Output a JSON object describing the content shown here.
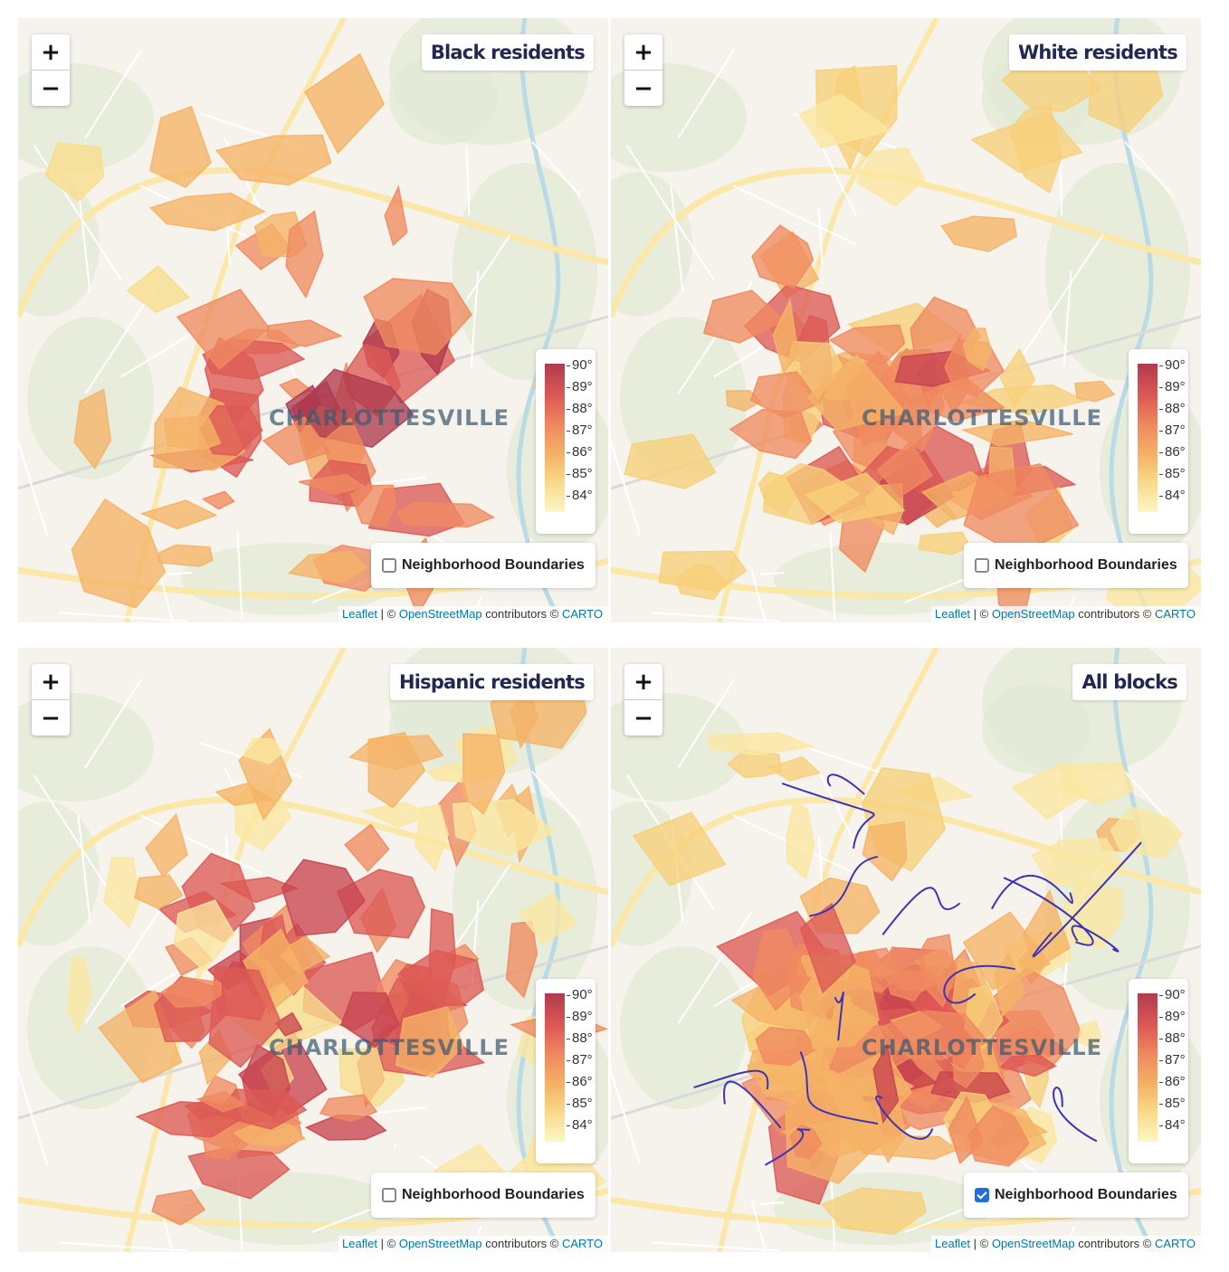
{
  "maps": [
    {
      "title": "Black residents",
      "checked": false,
      "palette": [
        "#f9dd8b",
        "#f5b366",
        "#ef8a60",
        "#dd5a55",
        "#b03a4e",
        "#f2a860",
        "#e8735a"
      ],
      "blob_count": 48,
      "density_bias": 0.55,
      "seed": 11
    },
    {
      "title": "White residents",
      "checked": false,
      "palette": [
        "#fbe7a0",
        "#f7cf7a",
        "#f5b366",
        "#ef8a60",
        "#dd5a55",
        "#c8444f",
        "#f9dd8b"
      ],
      "blob_count": 70,
      "density_bias": 0.5,
      "seed": 23
    },
    {
      "title": "Hispanic residents",
      "checked": false,
      "palette": [
        "#fbe7a0",
        "#f5b366",
        "#ef8a60",
        "#dd5a55",
        "#c8444f",
        "#f9dd8b",
        "#e8735a"
      ],
      "blob_count": 90,
      "density_bias": 0.5,
      "seed": 37
    },
    {
      "title": "All blocks",
      "checked": true,
      "palette": [
        "#fbe7a0",
        "#f7cf7a",
        "#f5b366",
        "#ef8a60",
        "#dd5a55",
        "#c8444f",
        "#b03a4e"
      ],
      "blob_count": 120,
      "density_bias": 0.7,
      "seed": 53
    }
  ],
  "zoom_in_label": "+",
  "zoom_out_label": "−",
  "city_label": "CHARLOTTESVILLE",
  "legend_ticks": [
    "90°",
    "89°",
    "88°",
    "87°",
    "86°",
    "85°",
    "84°"
  ],
  "neighborhood_label": "Neighborhood Boundaries",
  "attribution": {
    "leaflet": "Leaflet",
    "sep": " | © ",
    "osm": "OpenStreetMap",
    "contrib": " contributors © ",
    "carto": "CARTO"
  }
}
